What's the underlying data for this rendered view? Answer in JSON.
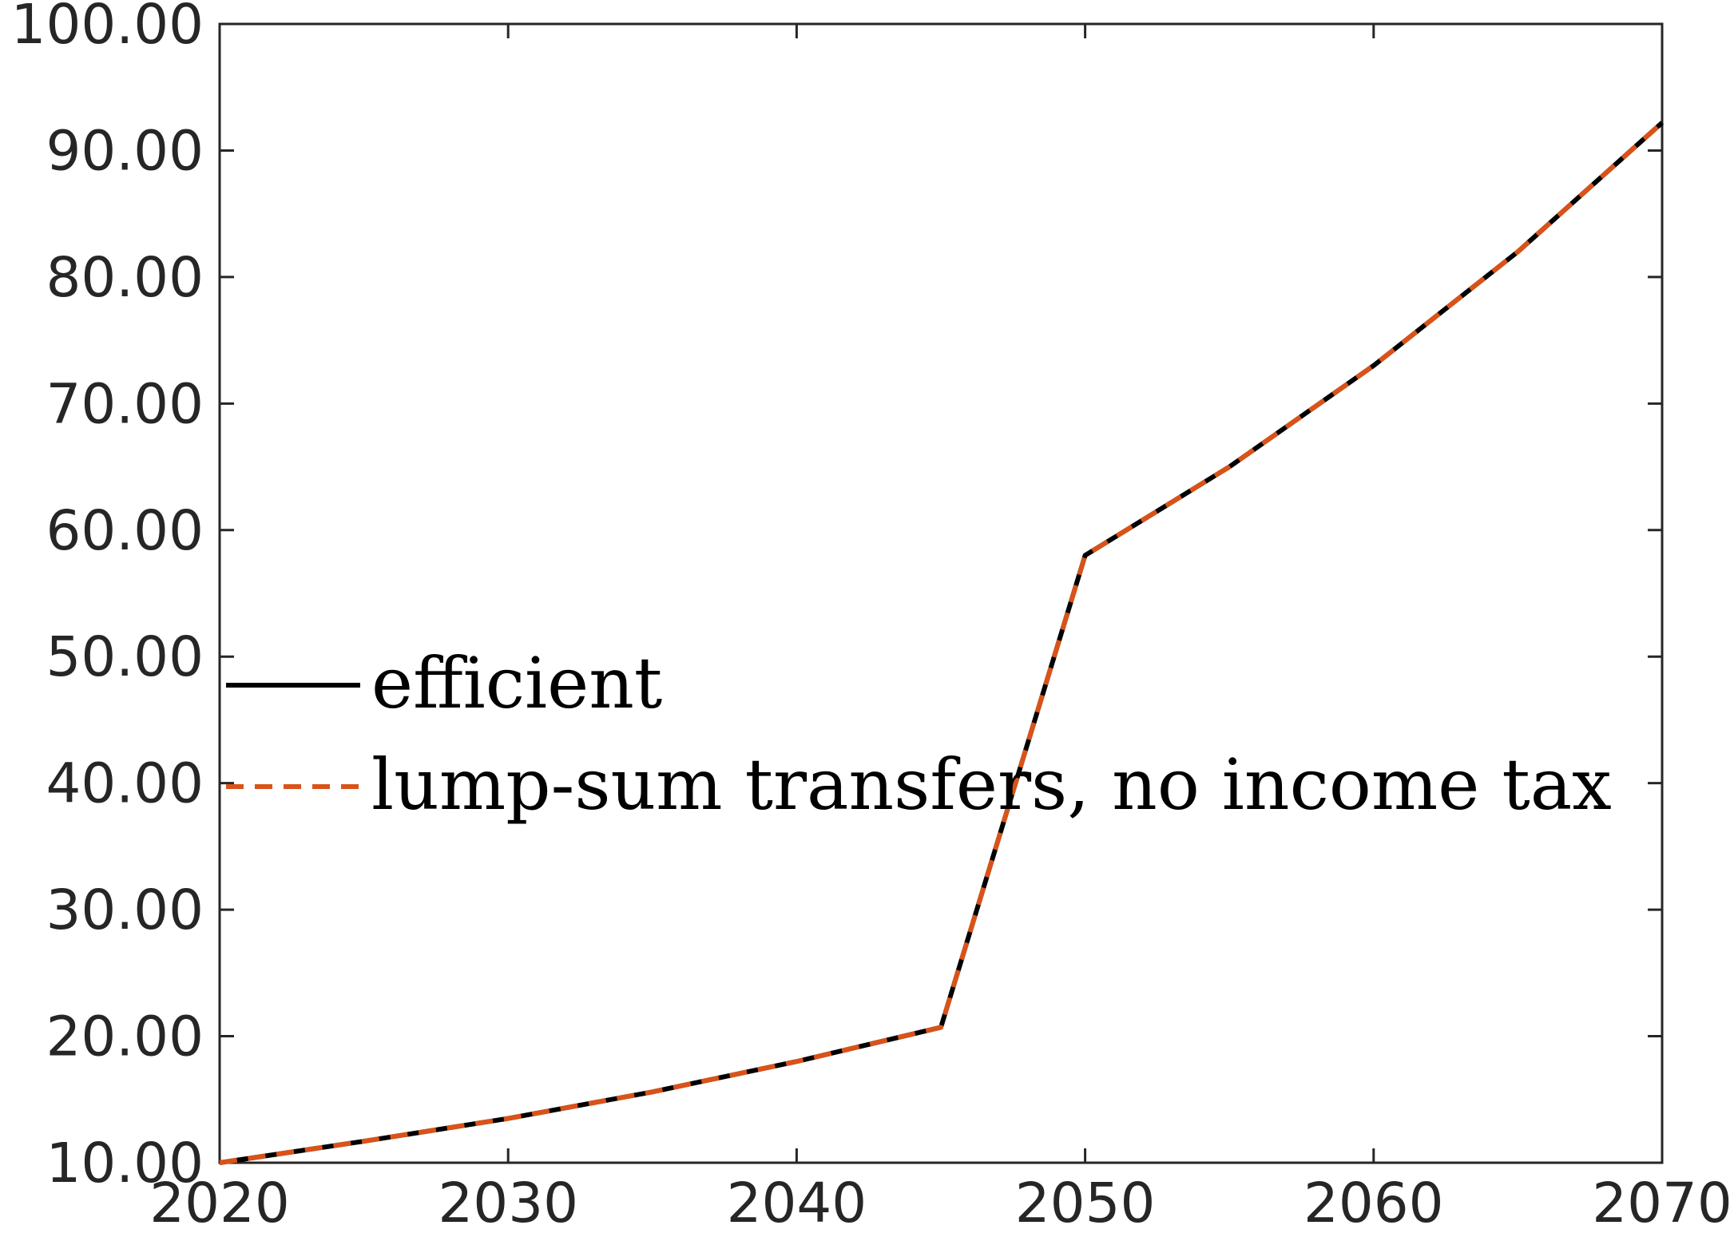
{
  "chart_data": {
    "type": "line",
    "title": "",
    "xlabel": "",
    "ylabel": "",
    "xlim": [
      2020,
      2070
    ],
    "ylim": [
      10,
      100
    ],
    "x_ticks": [
      2020,
      2030,
      2040,
      2050,
      2060,
      2070
    ],
    "y_ticks": [
      10,
      20,
      30,
      40,
      50,
      60,
      70,
      80,
      90,
      100
    ],
    "x_tick_labels": [
      "2020",
      "2030",
      "2040",
      "2050",
      "2060",
      "2070"
    ],
    "y_tick_labels": [
      "10.00",
      "20.00",
      "30.00",
      "40.00",
      "50.00",
      "60.00",
      "70.00",
      "80.00",
      "90.00",
      "100.00"
    ],
    "grid": false,
    "legend_position": "middle-left",
    "x": [
      2020,
      2025,
      2030,
      2035,
      2040,
      2045,
      2050,
      2055,
      2060,
      2065,
      2070
    ],
    "series": [
      {
        "name": "efficient",
        "color": "#000000",
        "style": "solid",
        "values": [
          10.0,
          11.7,
          13.5,
          15.6,
          18.0,
          20.7,
          58.0,
          65.0,
          73.0,
          82.0,
          92.2
        ]
      },
      {
        "name": "lump-sum transfers, no income tax",
        "color": "#D95319",
        "style": "dashed",
        "values": [
          10.0,
          11.7,
          13.5,
          15.6,
          18.0,
          20.7,
          58.0,
          65.0,
          73.0,
          82.0,
          92.2
        ]
      }
    ],
    "axis_color": "#262626"
  }
}
